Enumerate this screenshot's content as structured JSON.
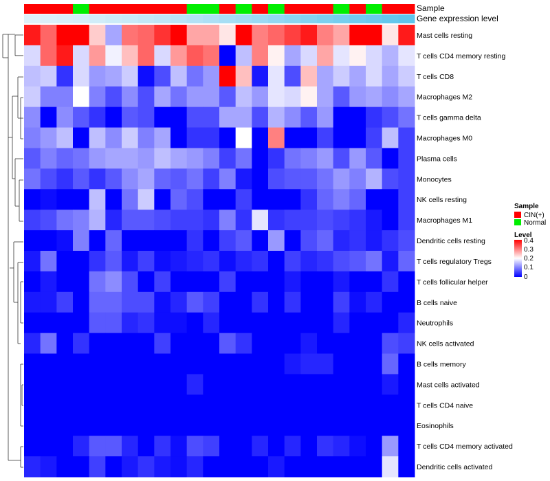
{
  "chart_data": {
    "type": "heatmap",
    "title": "",
    "annotations": {
      "sample_label": "Sample",
      "gene_label": "Gene expression level",
      "sample_groups": [
        "CIN",
        "CIN",
        "CIN",
        "Normal",
        "CIN",
        "CIN",
        "CIN",
        "CIN",
        "CIN",
        "CIN",
        "Normal",
        "Normal",
        "CIN",
        "Normal",
        "CIN",
        "Normal",
        "CIN",
        "CIN",
        "CIN",
        "Normal",
        "CIN",
        "Normal",
        "CIN",
        "CIN"
      ],
      "gene_level": [
        0.05,
        0.07,
        0.09,
        0.11,
        0.14,
        0.17,
        0.2,
        0.23,
        0.26,
        0.3,
        0.34,
        0.38,
        0.42,
        0.46,
        0.5,
        0.55,
        0.6,
        0.65,
        0.7,
        0.74,
        0.78,
        0.82,
        0.86,
        0.9
      ]
    },
    "rows": [
      "Mast cells resting",
      "T cells CD4 memory resting",
      "T cells CD8",
      "Macrophages M2",
      "T cells gamma delta",
      "Macrophages M0",
      "Plasma cells",
      "Monocytes",
      "NK cells resting",
      "Macrophages M1",
      "Dendritic cells resting",
      "T cells regulatory  Tregs",
      "T cells follicular helper",
      "B cells naive",
      "Neutrophils",
      "NK cells activated",
      "B cells memory",
      "Mast cells activated",
      "T cells CD4 naive",
      "Eosinophils",
      "T cells CD4 memory activated",
      "Dendritic cells activated"
    ],
    "values": [
      [
        0.38,
        0.32,
        0.4,
        0.4,
        0.24,
        0.13,
        0.31,
        0.32,
        0.36,
        0.4,
        0.27,
        0.27,
        0.22,
        0.4,
        0.3,
        0.32,
        0.35,
        0.38,
        0.3,
        0.27,
        0.4,
        0.4,
        0.22,
        0.38
      ],
      [
        0.17,
        0.32,
        0.38,
        0.17,
        0.28,
        0.19,
        0.25,
        0.32,
        0.17,
        0.28,
        0.33,
        0.31,
        0.0,
        0.15,
        0.3,
        0.21,
        0.13,
        0.17,
        0.27,
        0.18,
        0.21,
        0.17,
        0.14,
        0.18
      ],
      [
        0.15,
        0.16,
        0.04,
        0.17,
        0.12,
        0.13,
        0.16,
        0.01,
        0.06,
        0.15,
        0.09,
        0.12,
        0.4,
        0.25,
        0.02,
        0.18,
        0.06,
        0.25,
        0.13,
        0.16,
        0.13,
        0.17,
        0.13,
        0.16
      ],
      [
        0.16,
        0.1,
        0.1,
        0.2,
        0.1,
        0.06,
        0.11,
        0.06,
        0.13,
        0.09,
        0.12,
        0.12,
        0.07,
        0.15,
        0.12,
        0.18,
        0.17,
        0.21,
        0.13,
        0.07,
        0.12,
        0.13,
        0.11,
        0.13
      ],
      [
        0.11,
        0.0,
        0.11,
        0.07,
        0.04,
        0.0,
        0.07,
        0.06,
        0.0,
        0.0,
        0.06,
        0.06,
        0.13,
        0.13,
        0.06,
        0.14,
        0.11,
        0.07,
        0.12,
        0.0,
        0.0,
        0.04,
        0.06,
        0.09
      ],
      [
        0.1,
        0.12,
        0.15,
        0.0,
        0.15,
        0.11,
        0.16,
        0.1,
        0.13,
        0.0,
        0.04,
        0.04,
        0.0,
        0.2,
        0.0,
        0.3,
        0.0,
        0.0,
        0.05,
        0.0,
        0.0,
        0.05,
        0.15,
        0.05
      ],
      [
        0.07,
        0.1,
        0.08,
        0.09,
        0.12,
        0.13,
        0.13,
        0.12,
        0.15,
        0.13,
        0.12,
        0.1,
        0.05,
        0.09,
        0.0,
        0.04,
        0.09,
        0.1,
        0.12,
        0.06,
        0.12,
        0.07,
        0.0,
        0.05
      ],
      [
        0.09,
        0.06,
        0.04,
        0.07,
        0.04,
        0.07,
        0.11,
        0.13,
        0.08,
        0.07,
        0.09,
        0.05,
        0.1,
        0.02,
        0.0,
        0.06,
        0.07,
        0.07,
        0.09,
        0.12,
        0.1,
        0.14,
        0.06,
        0.05
      ],
      [
        0.0,
        0.01,
        0.0,
        0.0,
        0.15,
        0.0,
        0.09,
        0.16,
        0.0,
        0.08,
        0.06,
        0.0,
        0.0,
        0.05,
        0.0,
        0.0,
        0.0,
        0.04,
        0.08,
        0.1,
        0.08,
        0.0,
        0.0,
        0.05
      ],
      [
        0.05,
        0.06,
        0.09,
        0.1,
        0.14,
        0.03,
        0.07,
        0.07,
        0.06,
        0.05,
        0.05,
        0.04,
        0.1,
        0.04,
        0.18,
        0.04,
        0.05,
        0.05,
        0.06,
        0.05,
        0.04,
        0.02,
        0.0,
        0.05
      ],
      [
        0.0,
        0.0,
        0.01,
        0.1,
        0.0,
        0.08,
        0.0,
        0.0,
        0.0,
        0.0,
        0.04,
        0.0,
        0.05,
        0.07,
        0.0,
        0.12,
        0.0,
        0.06,
        0.08,
        0.03,
        0.04,
        0.02,
        0.04,
        0.06
      ],
      [
        0.02,
        0.09,
        0.0,
        0.0,
        0.04,
        0.07,
        0.02,
        0.05,
        0.01,
        0.02,
        0.03,
        0.04,
        0.01,
        0.03,
        0.04,
        0.0,
        0.05,
        0.03,
        0.04,
        0.06,
        0.07,
        0.09,
        0.02,
        0.08
      ],
      [
        0.0,
        0.02,
        0.0,
        0.0,
        0.09,
        0.11,
        0.06,
        0.0,
        0.05,
        0.0,
        0.0,
        0.0,
        0.05,
        0.0,
        0.0,
        0.0,
        0.02,
        0.0,
        0.0,
        0.02,
        0.0,
        0.0,
        0.04,
        0.0
      ],
      [
        0.02,
        0.02,
        0.05,
        0.0,
        0.08,
        0.08,
        0.06,
        0.06,
        0.01,
        0.03,
        0.07,
        0.05,
        0.0,
        0.0,
        0.04,
        0.0,
        0.04,
        0.0,
        0.0,
        0.05,
        0.01,
        0.03,
        0.0,
        0.0
      ],
      [
        0.0,
        0.0,
        0.0,
        0.0,
        0.07,
        0.07,
        0.03,
        0.04,
        0.01,
        0.01,
        0.0,
        0.03,
        0.0,
        0.0,
        0.0,
        0.0,
        0.0,
        0.0,
        0.0,
        0.03,
        0.0,
        0.0,
        0.0,
        0.03
      ],
      [
        0.03,
        0.09,
        0.0,
        0.04,
        0.0,
        0.0,
        0.0,
        0.0,
        0.05,
        0.0,
        0.0,
        0.0,
        0.07,
        0.04,
        0.0,
        0.0,
        0.0,
        0.02,
        0.0,
        0.0,
        0.0,
        0.0,
        0.06,
        0.05
      ],
      [
        0.0,
        0.0,
        0.0,
        0.0,
        0.0,
        0.0,
        0.0,
        0.0,
        0.0,
        0.0,
        0.0,
        0.0,
        0.0,
        0.0,
        0.0,
        0.0,
        0.02,
        0.03,
        0.03,
        0.0,
        0.0,
        0.0,
        0.08,
        0.0
      ],
      [
        0.0,
        0.0,
        0.0,
        0.0,
        0.0,
        0.0,
        0.0,
        0.0,
        0.0,
        0.0,
        0.03,
        0.0,
        0.0,
        0.0,
        0.0,
        0.0,
        0.0,
        0.0,
        0.0,
        0.0,
        0.0,
        0.0,
        0.02,
        0.0
      ],
      [
        0.0,
        0.0,
        0.0,
        0.0,
        0.0,
        0.0,
        0.0,
        0.0,
        0.0,
        0.0,
        0.0,
        0.0,
        0.0,
        0.0,
        0.0,
        0.0,
        0.0,
        0.0,
        0.0,
        0.0,
        0.0,
        0.0,
        0.0,
        0.0
      ],
      [
        0.0,
        0.0,
        0.0,
        0.0,
        0.0,
        0.0,
        0.0,
        0.0,
        0.0,
        0.0,
        0.0,
        0.0,
        0.0,
        0.0,
        0.0,
        0.0,
        0.0,
        0.0,
        0.0,
        0.0,
        0.0,
        0.0,
        0.0,
        0.0
      ],
      [
        0.0,
        0.0,
        0.0,
        0.03,
        0.07,
        0.07,
        0.03,
        0.0,
        0.04,
        0.01,
        0.06,
        0.05,
        0.0,
        0.0,
        0.03,
        0.0,
        0.03,
        0.0,
        0.04,
        0.03,
        0.01,
        0.0,
        0.12,
        0.0
      ],
      [
        0.03,
        0.02,
        0.0,
        0.0,
        0.05,
        0.0,
        0.02,
        0.04,
        0.02,
        0.01,
        0.03,
        0.0,
        0.0,
        0.0,
        0.0,
        0.02,
        0.0,
        0.0,
        0.0,
        0.0,
        0.0,
        0.0,
        0.18,
        0.0
      ]
    ],
    "scale": {
      "min": 0,
      "max": 0.4
    }
  },
  "legend": {
    "sample_title": "Sample",
    "sample_items": [
      {
        "label": "CIN(+)",
        "color": "#ff0000"
      },
      {
        "label": "Normal",
        "color": "#00ee00"
      }
    ],
    "level_title": "Level",
    "level_ticks": [
      "0.4",
      "0.3",
      "0.2",
      "0.1",
      "0"
    ],
    "gradient": {
      "low": "#0000ff",
      "mid": "#ffffff",
      "high": "#ff0000"
    }
  },
  "colors": {
    "cin": "#ff0000",
    "normal": "#00ee00",
    "gene_low": "#e6f4fb",
    "gene_high": "#4fc0ea"
  }
}
